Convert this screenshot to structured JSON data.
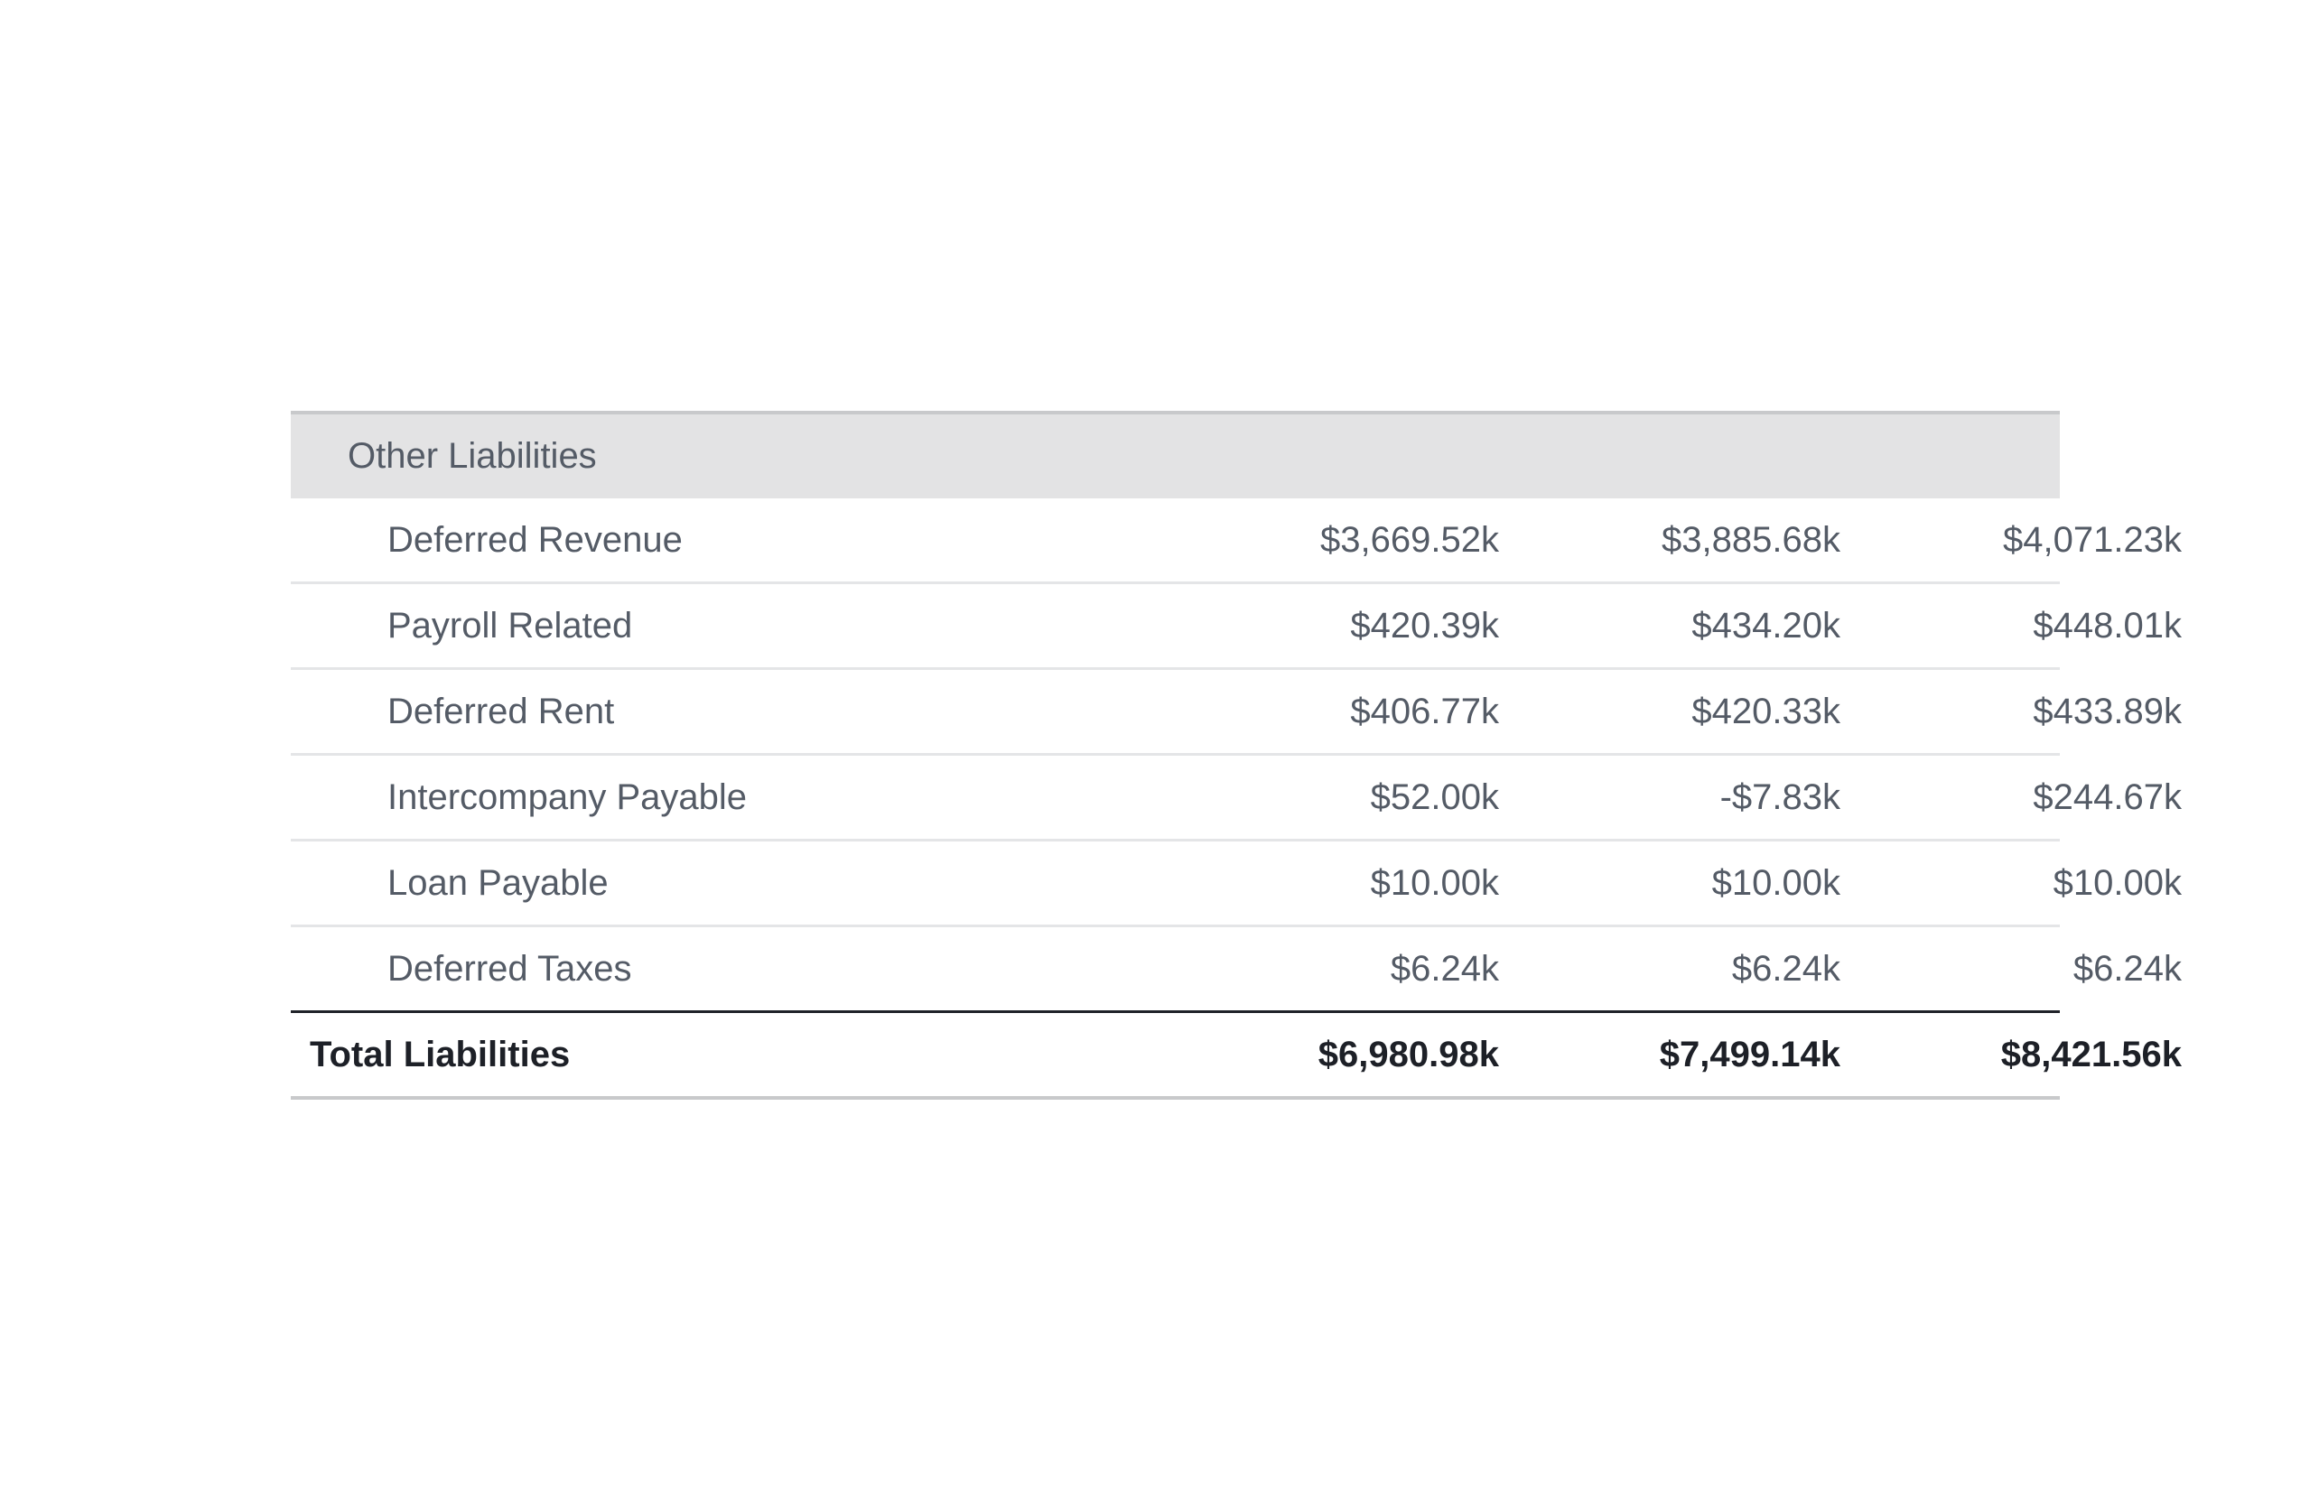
{
  "section": {
    "title": "Other Liabilities"
  },
  "rows": [
    {
      "label": "Deferred Revenue",
      "values": [
        "$3,669.52k",
        "$3,885.68k",
        "$4,071.23k"
      ]
    },
    {
      "label": "Payroll Related",
      "values": [
        "$420.39k",
        "$434.20k",
        "$448.01k"
      ]
    },
    {
      "label": "Deferred Rent",
      "values": [
        "$406.77k",
        "$420.33k",
        "$433.89k"
      ]
    },
    {
      "label": "Intercompany Payable",
      "values": [
        "$52.00k",
        "-$7.83k",
        "$244.67k"
      ]
    },
    {
      "label": "Loan Payable",
      "values": [
        "$10.00k",
        "$10.00k",
        "$10.00k"
      ]
    },
    {
      "label": "Deferred Taxes",
      "values": [
        "$6.24k",
        "$6.24k",
        "$6.24k"
      ]
    }
  ],
  "total": {
    "label": "Total Liabilities",
    "values": [
      "$6,980.98k",
      "$7,499.14k",
      "$8,421.56k"
    ]
  },
  "colors": {
    "header_background": "#e3e3e4",
    "text": "#545b66",
    "total_text": "#1d2027",
    "row_divider": "#e4e5e7",
    "total_divider": "#1f2228"
  }
}
